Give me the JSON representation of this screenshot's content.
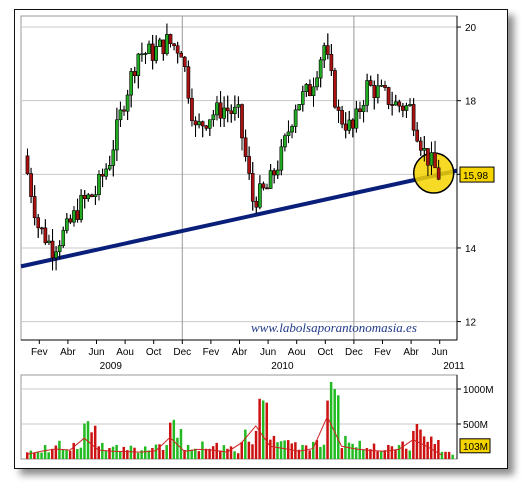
{
  "chart_data": [
    {
      "type": "candlestick",
      "title": "",
      "ylim": [
        11.5,
        20.3
      ],
      "y_ticks": [
        12,
        14,
        16,
        18,
        20
      ],
      "grid": true,
      "x_tick_labels": [
        "Fev",
        "Abr",
        "Jun",
        "Aou",
        "Oct",
        "Dec",
        "Fev",
        "Abr",
        "Jun",
        "Aou",
        "Oct",
        "Dec",
        "Fev",
        "Abr",
        "Jun"
      ],
      "year_labels": [
        "2009",
        "2010",
        "2011"
      ],
      "price_path": [
        {
          "date": "2009-01",
          "close": 16.5
        },
        {
          "date": "2009-02",
          "close": 14.6
        },
        {
          "date": "2009-03",
          "close": 14.0
        },
        {
          "date": "2009-04",
          "close": 14.5
        },
        {
          "date": "2009-05",
          "close": 15.2
        },
        {
          "date": "2009-06",
          "close": 15.5
        },
        {
          "date": "2009-07",
          "close": 16.4
        },
        {
          "date": "2009-08",
          "close": 18.0
        },
        {
          "date": "2009-09",
          "close": 19.3
        },
        {
          "date": "2009-10",
          "close": 19.3
        },
        {
          "date": "2009-11",
          "close": 19.6
        },
        {
          "date": "2009-12",
          "close": 19.4
        },
        {
          "date": "2010-01",
          "close": 17.2
        },
        {
          "date": "2010-02",
          "close": 17.6
        },
        {
          "date": "2010-03",
          "close": 17.8
        },
        {
          "date": "2010-04",
          "close": 17.6
        },
        {
          "date": "2010-05",
          "close": 15.3
        },
        {
          "date": "2010-06",
          "close": 15.6
        },
        {
          "date": "2010-07",
          "close": 16.5
        },
        {
          "date": "2010-08",
          "close": 17.9
        },
        {
          "date": "2010-09",
          "close": 18.3
        },
        {
          "date": "2010-10",
          "close": 19.5
        },
        {
          "date": "2010-11",
          "close": 17.6
        },
        {
          "date": "2010-12",
          "close": 17.2
        },
        {
          "date": "2011-01",
          "close": 18.4
        },
        {
          "date": "2011-02",
          "close": 18.2
        },
        {
          "date": "2011-03",
          "close": 17.9
        },
        {
          "date": "2011-04",
          "close": 17.8
        },
        {
          "date": "2011-05",
          "close": 16.6
        },
        {
          "date": "2011-06",
          "close": 15.98
        }
      ],
      "trendline": {
        "from": {
          "date": "2009-01",
          "value": 13.5
        },
        "to": {
          "date": "2011-06",
          "value": 16.1
        }
      },
      "last_price_label": "15,98",
      "highlight": "circle at last price",
      "watermark": "www.labolsaporantonomasia.es",
      "colors": {
        "up": "#22aa22",
        "down": "#aa1111",
        "trend": "#0a1f7a",
        "highlight": "#f5d400",
        "grid": "#c8c8c8"
      }
    },
    {
      "type": "bar",
      "title": "",
      "ylabel": "",
      "y_ticks": [
        "1000M",
        "500M"
      ],
      "last_volume_label": "103M",
      "average_line": true,
      "volume_series": [
        {
          "date": "2009-01",
          "volume": 120
        },
        {
          "date": "2009-02",
          "volume": 200
        },
        {
          "date": "2009-03",
          "volume": 260
        },
        {
          "date": "2009-04",
          "volume": 230
        },
        {
          "date": "2009-05",
          "volume": 540
        },
        {
          "date": "2009-06",
          "volume": 230
        },
        {
          "date": "2009-07",
          "volume": 200
        },
        {
          "date": "2009-08",
          "volume": 190
        },
        {
          "date": "2009-09",
          "volume": 180
        },
        {
          "date": "2009-10",
          "volume": 210
        },
        {
          "date": "2009-11",
          "volume": 560
        },
        {
          "date": "2009-12",
          "volume": 200
        },
        {
          "date": "2010-01",
          "volume": 250
        },
        {
          "date": "2010-02",
          "volume": 230
        },
        {
          "date": "2010-03",
          "volume": 180
        },
        {
          "date": "2010-04",
          "volume": 420
        },
        {
          "date": "2010-05",
          "volume": 860
        },
        {
          "date": "2010-06",
          "volume": 330
        },
        {
          "date": "2010-07",
          "volume": 270
        },
        {
          "date": "2010-08",
          "volume": 200
        },
        {
          "date": "2010-09",
          "volume": 270
        },
        {
          "date": "2010-10",
          "volume": 1100
        },
        {
          "date": "2010-11",
          "volume": 330
        },
        {
          "date": "2010-12",
          "volume": 260
        },
        {
          "date": "2011-01",
          "volume": 220
        },
        {
          "date": "2011-02",
          "volume": 200
        },
        {
          "date": "2011-03",
          "volume": 250
        },
        {
          "date": "2011-04",
          "volume": 500
        },
        {
          "date": "2011-05",
          "volume": 320
        },
        {
          "date": "2011-06",
          "volume": 103
        }
      ],
      "colors": {
        "up": "#22bb22",
        "down": "#cc1111",
        "avg": "#cc2222"
      }
    }
  ]
}
